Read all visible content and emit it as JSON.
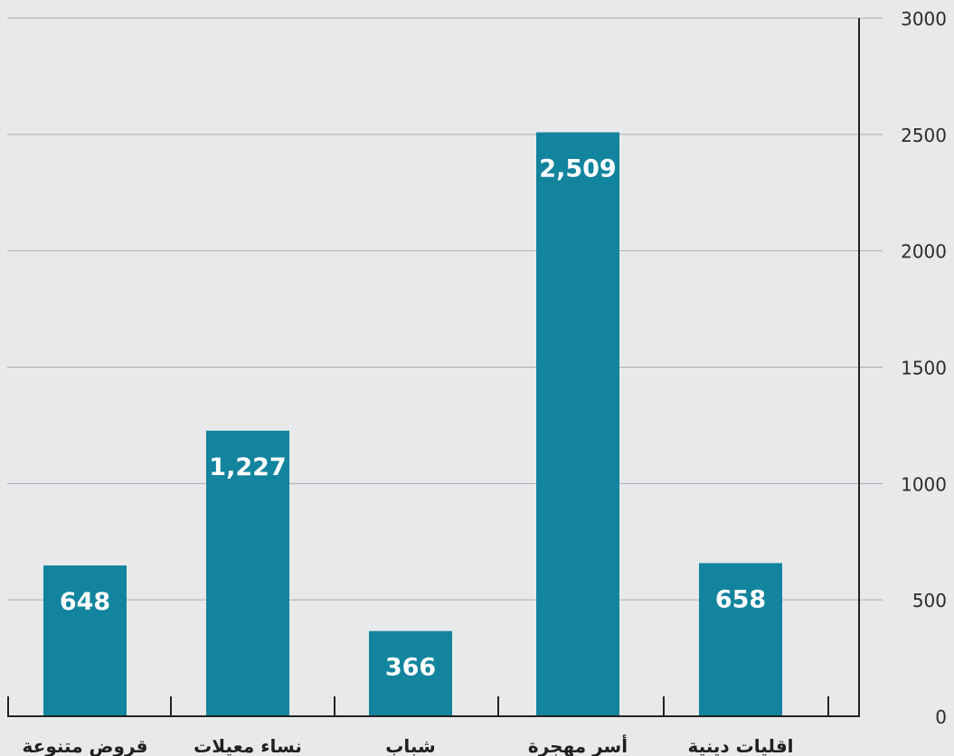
{
  "chart_data": {
    "type": "bar",
    "title": "",
    "xlabel": "",
    "ylabel": "",
    "categories": [
      "قروض متنوعة",
      "نساء معيلات",
      "شباب",
      "أسر مهجرة",
      "اقليات دينية"
    ],
    "values": [
      648,
      1227,
      366,
      2509,
      658
    ],
    "value_labels": [
      "648",
      "1,227",
      "366",
      "2,509",
      "658"
    ],
    "ylim": [
      0,
      3000
    ],
    "y_ticks": [
      0,
      500,
      1000,
      1500,
      2000,
      2500,
      3000
    ],
    "y_tick_labels": [
      "0",
      "500",
      "1000",
      "1500",
      "2000",
      "2500",
      "3000"
    ],
    "y_axis_position": "right",
    "grid": true,
    "legend": "none",
    "bar_color": "#12849d",
    "label_color": "#ffffff",
    "grid_color": "#a9acb0",
    "axis_color": "#222222",
    "background": "#e8e9eb"
  }
}
